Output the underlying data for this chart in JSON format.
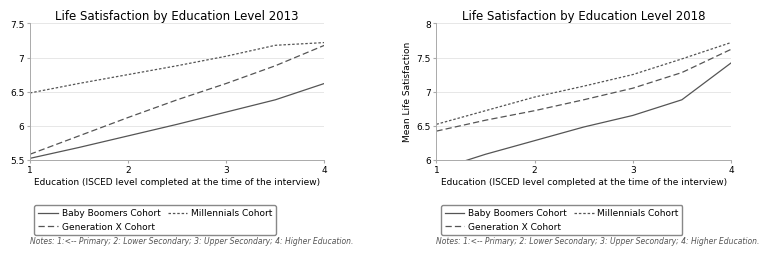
{
  "title_2013": "Life Satisfaction by Education Level 2013",
  "title_2018": "Life Satisfaction by Education Level 2018",
  "xlabel": "Education (ISCED level completed at the time of the interview)",
  "ylabel_2018": "Mean Life Satisfaction",
  "notes_2013": "Notes: 1:<-- Primary; 2: Lower Secondary; 3: Upper Secondary; 4: Higher Education.",
  "notes_2018": "Notes: 1:<-- Primary; 2: Lower Secondary; 3: Upper Secondary; 4: Higher Education.",
  "xticks": [
    1,
    2,
    3,
    4
  ],
  "legend_labels": [
    "Baby Boomers Cohort",
    "Generation X Cohort",
    "Millennials Cohort"
  ],
  "data_2013": {
    "baby_boomers": {
      "x": [
        1,
        1.5,
        2,
        2.5,
        3,
        3.5,
        4
      ],
      "y": [
        5.52,
        5.68,
        5.85,
        6.02,
        6.2,
        6.38,
        6.62
      ]
    },
    "gen_x": {
      "x": [
        1,
        1.5,
        2,
        2.5,
        3,
        3.5,
        4
      ],
      "y": [
        5.58,
        5.85,
        6.12,
        6.38,
        6.62,
        6.88,
        7.18
      ]
    },
    "millennials": {
      "x": [
        1,
        1.5,
        2,
        2.5,
        3,
        3.5,
        4
      ],
      "y": [
        6.48,
        6.62,
        6.75,
        6.88,
        7.02,
        7.18,
        7.22
      ]
    }
  },
  "data_2018": {
    "baby_boomers": {
      "x": [
        1,
        1.5,
        2,
        2.5,
        3,
        3.5,
        4
      ],
      "y": [
        5.85,
        6.08,
        6.28,
        6.48,
        6.65,
        6.88,
        7.42
      ]
    },
    "gen_x": {
      "x": [
        1,
        1.5,
        2,
        2.5,
        3,
        3.5,
        4
      ],
      "y": [
        6.42,
        6.58,
        6.72,
        6.88,
        7.05,
        7.28,
        7.62
      ]
    },
    "millennials": {
      "x": [
        1,
        1.5,
        2,
        2.5,
        3,
        3.5,
        4
      ],
      "y": [
        6.52,
        6.72,
        6.92,
        7.08,
        7.25,
        7.48,
        7.72
      ]
    }
  },
  "ylim_2013": [
    5.5,
    7.5
  ],
  "yticks_2013": [
    5.5,
    6.0,
    6.5,
    7.0,
    7.5
  ],
  "ylim_2018": [
    6.0,
    8.0
  ],
  "yticks_2018": [
    6.0,
    6.5,
    7.0,
    7.5,
    8.0
  ],
  "line_color": "#555555",
  "bg_color": "#ffffff",
  "grid_color": "#dddddd",
  "fontsize_title": 8.5,
  "fontsize_axis": 6.5,
  "fontsize_tick": 6.5,
  "fontsize_legend": 6.5,
  "fontsize_notes": 5.5
}
